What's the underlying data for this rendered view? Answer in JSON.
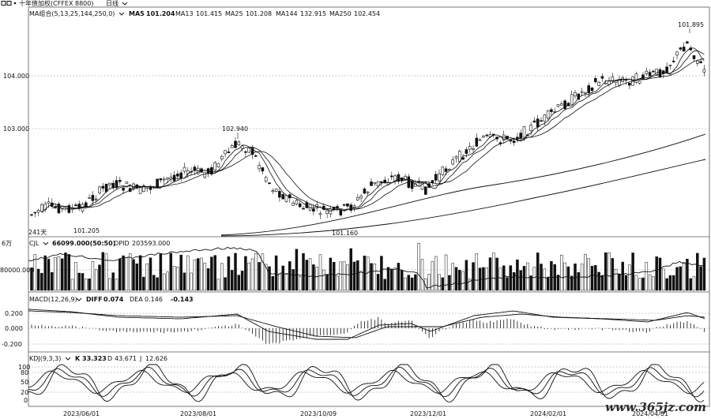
{
  "window": {
    "icon": "grid-icon",
    "title": "十年债加权(CFFEX 8800)",
    "period_label": "日线",
    "dropdown_icon": "chevron-down-icon"
  },
  "price_panel": {
    "indicator": "MA组合(5,13,25,144,250,0)",
    "ma_values": [
      {
        "label": "MA5",
        "value": "101.204"
      },
      {
        "label": "MA13",
        "value": "101.415"
      },
      {
        "label": "MA25",
        "value": "101.208"
      },
      {
        "label": "MA144",
        "value": "132.915"
      },
      {
        "label": "MA250",
        "value": "102.454"
      }
    ],
    "y_ticks": [
      "104.000",
      "103.000"
    ],
    "annotations": {
      "high_1": "102.940",
      "high_2": "101.895",
      "low_1": "101.205",
      "low_2": "101.160",
      "days": "241天"
    }
  },
  "volume_panel": {
    "unit": "6万",
    "indicator": "CJL",
    "vol_value": "66099.000(50:50)",
    "opid_label": "OPID",
    "opid_value": "203593.000",
    "y_tick": "80000.000"
  },
  "macd_panel": {
    "indicator": "MACD(12,26,9)",
    "diff_label": "DIFF",
    "diff_value": "0.074",
    "dea_label": "DEA",
    "dea_value": "0.146",
    "macd_value": "-0.143",
    "y_ticks": [
      "0.200",
      "0.000",
      "-0.200"
    ]
  },
  "kdj_panel": {
    "indicator": "KDJ(9,3,3)",
    "k_label": "K",
    "k_value": "33.323",
    "d_label": "D",
    "d_value": "43.671",
    "j_label": "J",
    "j_value": "12.626",
    "y_ticks": [
      "100",
      "80",
      "50",
      "20",
      "0"
    ]
  },
  "x_axis": {
    "dates": [
      "2023/06/01",
      "2023/08/01",
      "2023/10/09",
      "2023/12/01",
      "2024/02/01",
      "2024/04/01"
    ]
  },
  "watermark": "www.365jz.com",
  "colors": {
    "grid": "#9a9a9a",
    "line": "#111111",
    "background": "#ffffff"
  }
}
